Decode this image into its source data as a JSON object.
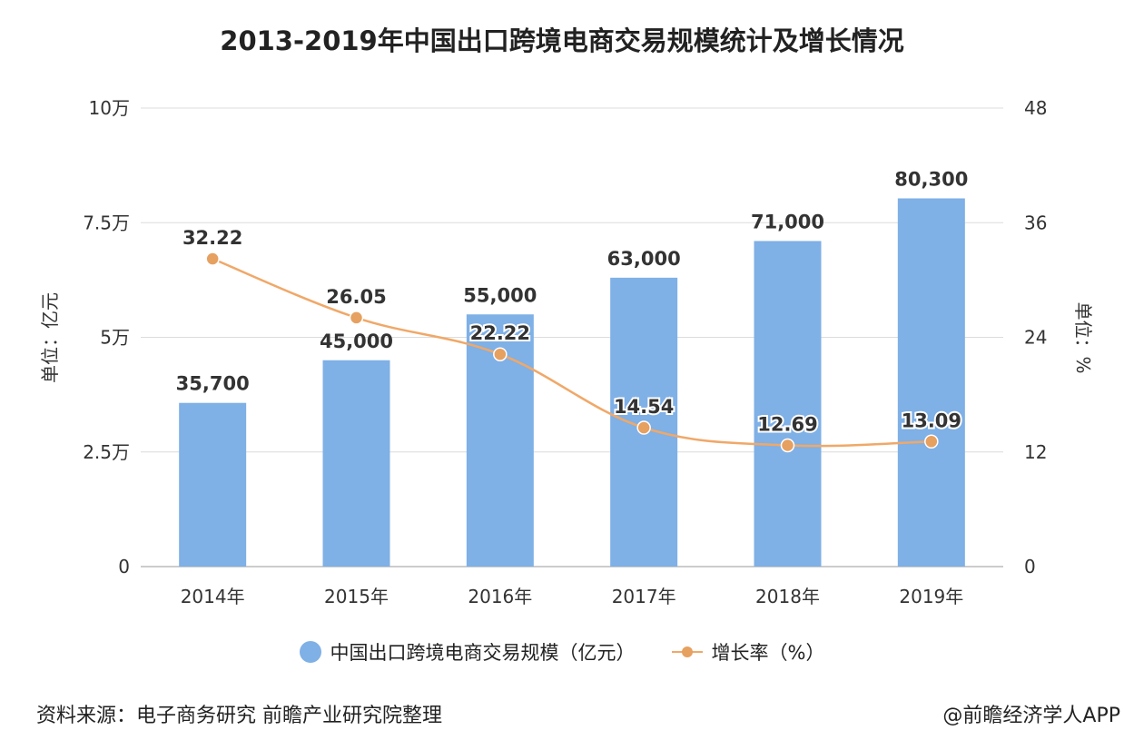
{
  "chart_data": {
    "type": "bar",
    "title": "2013-2019年中国出口跨境电商交易规模统计及增长情况",
    "categories": [
      "2014年",
      "2015年",
      "2016年",
      "2017年",
      "2018年",
      "2019年"
    ],
    "series": [
      {
        "name": "中国出口跨境电商交易规模（亿元）",
        "type": "bar",
        "axis": "left",
        "values": [
          35700,
          45000,
          55000,
          63000,
          71000,
          80300
        ],
        "labels": [
          "35,700",
          "45,000",
          "55,000",
          "63,000",
          "71,000",
          "80,300"
        ]
      },
      {
        "name": "增长率（%）",
        "type": "line",
        "axis": "right",
        "values": [
          32.22,
          26.05,
          22.22,
          14.54,
          12.69,
          13.09
        ],
        "labels": [
          "32.22",
          "26.05",
          "22.22",
          "14.54",
          "12.69",
          "13.09"
        ]
      }
    ],
    "ylabel": "单位：亿元",
    "y2label": "单位：%",
    "ylim": [
      0,
      100000
    ],
    "y2lim": [
      0,
      48
    ],
    "yticks": [
      0,
      25000,
      50000,
      75000,
      100000
    ],
    "ytick_labels": [
      "0",
      "2.5万",
      "5万",
      "7.5万",
      "10万"
    ],
    "y2ticks": [
      0,
      12,
      24,
      36,
      48
    ],
    "y2tick_labels": [
      "0",
      "12",
      "24",
      "36",
      "48"
    ],
    "grid": true,
    "legend_position": "bottom"
  },
  "colors": {
    "bar": "#7fb0e6",
    "line": "#f0a868",
    "marker": "#e6a060",
    "grid": "#dcdcdc",
    "text": "#333333"
  },
  "footer": {
    "source": "资料来源：电子商务研究 前瞻产业研究院整理",
    "brand": "@前瞻经济学人APP"
  }
}
